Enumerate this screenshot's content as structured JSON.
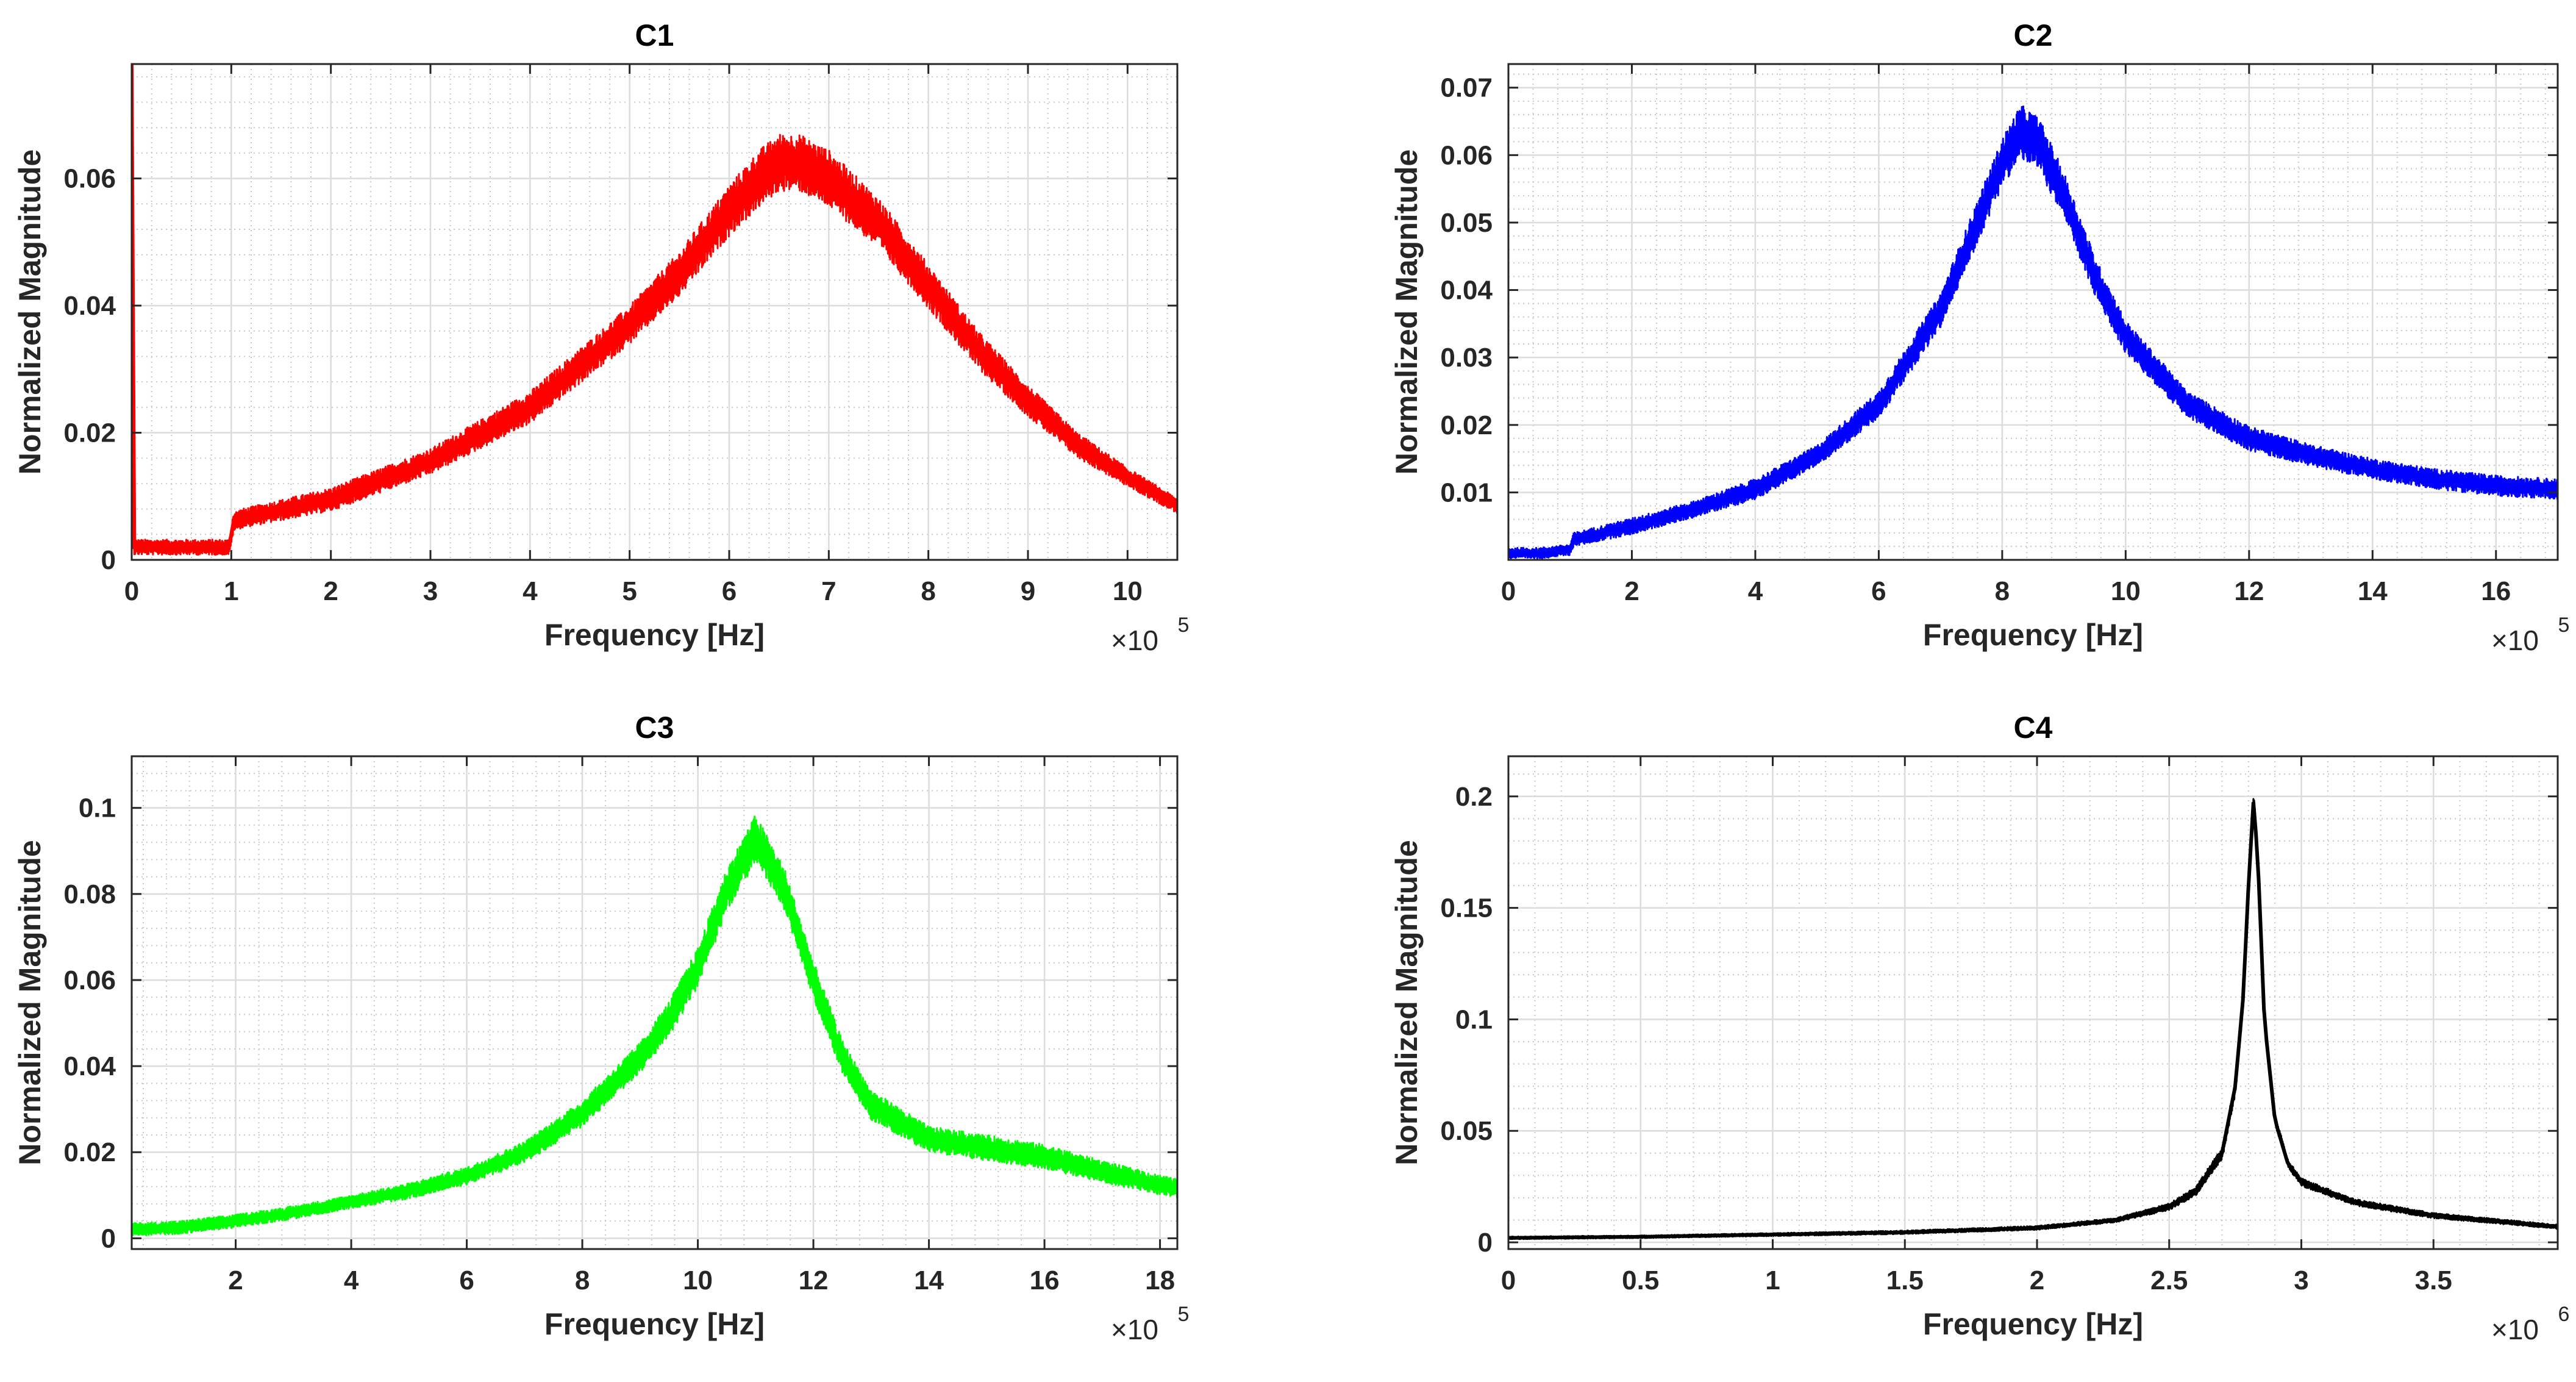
{
  "chart_data": [
    {
      "type": "line",
      "title": "C1",
      "xlabel": "Frequency [Hz]",
      "ylabel": "Normalized Magnitude",
      "x_scale_label": "×10",
      "x_scale_exp": "5",
      "xlim": [
        0,
        10.5
      ],
      "ylim": [
        0,
        0.078
      ],
      "xticks": [
        0,
        1,
        2,
        3,
        4,
        5,
        6,
        7,
        8,
        9,
        10
      ],
      "xtick_labels": [
        "0",
        "1",
        "2",
        "3",
        "4",
        "5",
        "6",
        "7",
        "8",
        "9",
        "10"
      ],
      "yticks": [
        0,
        0.02,
        0.04,
        0.06
      ],
      "ytick_labels": [
        "0",
        "0.02",
        "0.04",
        "0.06"
      ],
      "grid": true,
      "color": "#ff0000",
      "series": [
        {
          "name": "C1",
          "x": [
            0,
            0.02,
            0.05,
            0.1,
            0.5,
            0.9,
            0.98,
            1.02,
            1.1,
            2,
            3,
            4,
            5,
            5.5,
            6,
            6.3,
            6.5,
            6.7,
            7,
            7.5,
            8,
            8.5,
            9,
            9.5,
            10,
            10.5
          ],
          "y": [
            0.078,
            0.002,
            0.002,
            0.002,
            0.002,
            0.002,
            0.002,
            0.006,
            0.0065,
            0.0095,
            0.0155,
            0.024,
            0.037,
            0.045,
            0.055,
            0.06,
            0.0625,
            0.0625,
            0.06,
            0.053,
            0.043,
            0.033,
            0.025,
            0.018,
            0.013,
            0.0085
          ],
          "band": [
            0.0012,
            0.0012,
            0.0012,
            0.0012,
            0.0012,
            0.0012,
            0.0012,
            0.0015,
            0.0015,
            0.0018,
            0.002,
            0.0025,
            0.003,
            0.0035,
            0.004,
            0.0045,
            0.0045,
            0.0045,
            0.0045,
            0.004,
            0.0035,
            0.003,
            0.0025,
            0.002,
            0.0015,
            0.0012
          ]
        }
      ]
    },
    {
      "type": "line",
      "title": "C2",
      "xlabel": "Frequency [Hz]",
      "ylabel": "Normalized Magnitude",
      "x_scale_label": "×10",
      "x_scale_exp": "5",
      "xlim": [
        0,
        17
      ],
      "ylim": [
        0,
        0.0735
      ],
      "xticks": [
        0,
        2,
        4,
        6,
        8,
        10,
        12,
        14,
        16
      ],
      "xtick_labels": [
        "0",
        "2",
        "4",
        "6",
        "8",
        "10",
        "12",
        "14",
        "16"
      ],
      "yticks": [
        0.01,
        0.02,
        0.03,
        0.04,
        0.05,
        0.06,
        0.07
      ],
      "ytick_labels": [
        "0.01",
        "0.02",
        "0.03",
        "0.04",
        "0.05",
        "0.06",
        "0.07"
      ],
      "grid": true,
      "color": "#0000ff",
      "series": [
        {
          "name": "C2",
          "x": [
            0,
            0.5,
            1,
            1.05,
            2,
            3,
            4,
            5,
            6,
            7,
            7.5,
            8,
            8.3,
            8.6,
            9,
            9.5,
            10,
            11,
            12,
            13,
            14,
            15,
            16,
            17
          ],
          "y": [
            0.001,
            0.001,
            0.0015,
            0.003,
            0.005,
            0.0075,
            0.0105,
            0.0155,
            0.023,
            0.037,
            0.048,
            0.059,
            0.0635,
            0.0615,
            0.054,
            0.042,
            0.033,
            0.023,
            0.018,
            0.0155,
            0.0135,
            0.012,
            0.011,
            0.0105
          ],
          "band": [
            0.0008,
            0.0008,
            0.0008,
            0.001,
            0.0012,
            0.0012,
            0.0015,
            0.0015,
            0.002,
            0.0025,
            0.003,
            0.0035,
            0.004,
            0.004,
            0.0035,
            0.003,
            0.0025,
            0.002,
            0.0018,
            0.0016,
            0.0015,
            0.0015,
            0.0015,
            0.0015
          ]
        }
      ]
    },
    {
      "type": "line",
      "title": "C3",
      "xlabel": "Frequency [Hz]",
      "ylabel": "Normalized Magnitude",
      "x_scale_label": "×10",
      "x_scale_exp": "5",
      "xlim": [
        0.2,
        18.3
      ],
      "ylim": [
        -0.0025,
        0.112
      ],
      "xticks": [
        2,
        4,
        6,
        8,
        10,
        12,
        14,
        16,
        18
      ],
      "xtick_labels": [
        "2",
        "4",
        "6",
        "8",
        "10",
        "12",
        "14",
        "16",
        "18"
      ],
      "yticks": [
        0,
        0.02,
        0.04,
        0.06,
        0.08,
        0.1
      ],
      "ytick_labels": [
        "0",
        "0.02",
        "0.04",
        "0.06",
        "0.08",
        "0.1"
      ],
      "grid": true,
      "color": "#00ff00",
      "series": [
        {
          "name": "C3",
          "x": [
            0.2,
            1,
            2,
            3,
            4,
            5,
            6,
            7,
            8,
            9,
            9.5,
            10,
            10.5,
            11,
            11.5,
            12,
            12.5,
            13,
            14,
            15,
            16,
            17,
            18.3
          ],
          "y": [
            0.002,
            0.0025,
            0.004,
            0.006,
            0.0085,
            0.011,
            0.0145,
            0.02,
            0.029,
            0.042,
            0.051,
            0.063,
            0.081,
            0.093,
            0.081,
            0.06,
            0.042,
            0.031,
            0.023,
            0.021,
            0.019,
            0.0155,
            0.0115
          ],
          "band": [
            0.0015,
            0.0015,
            0.0015,
            0.0015,
            0.0015,
            0.0018,
            0.002,
            0.0025,
            0.003,
            0.0035,
            0.004,
            0.0045,
            0.005,
            0.0055,
            0.005,
            0.0045,
            0.004,
            0.0035,
            0.003,
            0.003,
            0.0028,
            0.0025,
            0.0022
          ]
        }
      ]
    },
    {
      "type": "line",
      "title": "C4",
      "xlabel": "Frequency [Hz]",
      "ylabel": "Normalized Magnitude",
      "x_scale_label": "×10",
      "x_scale_exp": "6",
      "xlim": [
        0,
        3.97
      ],
      "ylim": [
        -0.003,
        0.218
      ],
      "xticks": [
        0,
        0.5,
        1,
        1.5,
        2,
        2.5,
        3,
        3.5
      ],
      "xtick_labels": [
        "0",
        "0.5",
        "1",
        "1.5",
        "2",
        "2.5",
        "3",
        "3.5"
      ],
      "yticks": [
        0,
        0.05,
        0.1,
        0.15,
        0.2
      ],
      "ytick_labels": [
        "0",
        "0.05",
        "0.1",
        "0.15",
        "0.2"
      ],
      "grid": true,
      "color": "#000000",
      "series": [
        {
          "name": "C4",
          "x": [
            0,
            0.5,
            1,
            1.5,
            2,
            2.3,
            2.5,
            2.6,
            2.7,
            2.75,
            2.78,
            2.8,
            2.82,
            2.84,
            2.86,
            2.9,
            2.95,
            3,
            3.2,
            3.5,
            3.97
          ],
          "y": [
            0.002,
            0.0025,
            0.0035,
            0.0045,
            0.0065,
            0.01,
            0.016,
            0.023,
            0.04,
            0.07,
            0.11,
            0.16,
            0.2,
            0.16,
            0.1,
            0.055,
            0.035,
            0.027,
            0.018,
            0.012,
            0.007
          ],
          "band": [
            0.0006,
            0.0006,
            0.0007,
            0.0008,
            0.0009,
            0.001,
            0.0015,
            0.002,
            0.0025,
            0.003,
            0.003,
            0.003,
            0.003,
            0.003,
            0.003,
            0.0025,
            0.002,
            0.0018,
            0.0015,
            0.0012,
            0.001
          ]
        }
      ]
    }
  ]
}
